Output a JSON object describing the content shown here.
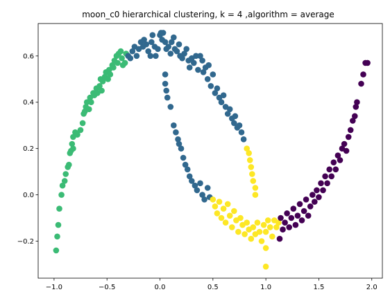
{
  "chart_data": {
    "type": "scatter",
    "title": "moon_c0 hierarchical clustering, k = 4 ,algorithm = average",
    "xlabel": "",
    "ylabel": "",
    "xlim": [
      -1.15,
      2.1
    ],
    "ylim": [
      -0.36,
      0.74
    ],
    "xticks": [
      -1.0,
      -0.5,
      0.0,
      0.5,
      1.0,
      1.5,
      2.0
    ],
    "xtick_labels": [
      "−1.0",
      "−0.5",
      "0.0",
      "0.5",
      "1.0",
      "1.5",
      "2.0"
    ],
    "yticks": [
      -0.2,
      0.0,
      0.2,
      0.4,
      0.6
    ],
    "ytick_labels": [
      "−0.2",
      "0.0",
      "0.2",
      "0.4",
      "0.6"
    ],
    "grid": false,
    "series": [
      {
        "color": "#3bbb75",
        "points": [
          [
            -0.98,
            -0.24
          ],
          [
            -0.97,
            -0.18
          ],
          [
            -0.96,
            -0.13
          ],
          [
            -0.95,
            -0.06
          ],
          [
            -0.93,
            0.0
          ],
          [
            -0.92,
            0.04
          ],
          [
            -0.9,
            0.06
          ],
          [
            -0.89,
            0.09
          ],
          [
            -0.87,
            0.12
          ],
          [
            -0.86,
            0.13
          ],
          [
            -0.85,
            0.18
          ],
          [
            -0.84,
            0.19
          ],
          [
            -0.83,
            0.22
          ],
          [
            -0.82,
            0.2
          ],
          [
            -0.82,
            0.25
          ],
          [
            -0.8,
            0.27
          ],
          [
            -0.78,
            0.26
          ],
          [
            -0.75,
            0.28
          ],
          [
            -0.73,
            0.31
          ],
          [
            -0.72,
            0.35
          ],
          [
            -0.71,
            0.36
          ],
          [
            -0.7,
            0.38
          ],
          [
            -0.69,
            0.4
          ],
          [
            -0.67,
            0.37
          ],
          [
            -0.66,
            0.42
          ],
          [
            -0.65,
            0.4
          ],
          [
            -0.63,
            0.44
          ],
          [
            -0.62,
            0.43
          ],
          [
            -0.6,
            0.46
          ],
          [
            -0.59,
            0.44
          ],
          [
            -0.57,
            0.47
          ],
          [
            -0.56,
            0.5
          ],
          [
            -0.55,
            0.45
          ],
          [
            -0.54,
            0.49
          ],
          [
            -0.52,
            0.51
          ],
          [
            -0.51,
            0.53
          ],
          [
            -0.49,
            0.5
          ],
          [
            -0.48,
            0.54
          ],
          [
            -0.47,
            0.52
          ],
          [
            -0.45,
            0.56
          ],
          [
            -0.44,
            0.55
          ],
          [
            -0.43,
            0.58
          ],
          [
            -0.41,
            0.6
          ],
          [
            -0.4,
            0.57
          ],
          [
            -0.39,
            0.61
          ],
          [
            -0.37,
            0.62
          ],
          [
            -0.36,
            0.59
          ],
          [
            -0.35,
            0.56
          ],
          [
            -0.33,
            0.57
          ],
          [
            -0.32,
            0.61
          ]
        ]
      },
      {
        "color": "#31688e",
        "points": [
          [
            -0.3,
            0.6
          ],
          [
            -0.28,
            0.59
          ],
          [
            -0.26,
            0.62
          ],
          [
            -0.24,
            0.64
          ],
          [
            -0.22,
            0.6
          ],
          [
            -0.2,
            0.63
          ],
          [
            -0.18,
            0.66
          ],
          [
            -0.16,
            0.64
          ],
          [
            -0.15,
            0.67
          ],
          [
            -0.13,
            0.65
          ],
          [
            -0.11,
            0.62
          ],
          [
            -0.09,
            0.6
          ],
          [
            -0.08,
            0.66
          ],
          [
            -0.07,
            0.69
          ],
          [
            -0.05,
            0.64
          ],
          [
            -0.04,
            0.6
          ],
          [
            -0.02,
            0.63
          ],
          [
            0.0,
            0.69
          ],
          [
            0.01,
            0.7
          ],
          [
            0.02,
            0.67
          ],
          [
            0.03,
            0.7
          ],
          [
            0.05,
            0.66
          ],
          [
            0.06,
            0.63
          ],
          [
            0.08,
            0.64
          ],
          [
            0.1,
            0.61
          ],
          [
            0.11,
            0.66
          ],
          [
            0.13,
            0.68
          ],
          [
            0.14,
            0.63
          ],
          [
            0.16,
            0.62
          ],
          [
            0.18,
            0.65
          ],
          [
            0.19,
            0.6
          ],
          [
            0.21,
            0.59
          ],
          [
            0.23,
            0.61
          ],
          [
            0.25,
            0.63
          ],
          [
            0.27,
            0.58
          ],
          [
            0.28,
            0.55
          ],
          [
            0.3,
            0.59
          ],
          [
            0.32,
            0.57
          ],
          [
            0.34,
            0.6
          ],
          [
            0.36,
            0.54
          ],
          [
            0.38,
            0.6
          ],
          [
            0.4,
            0.58
          ],
          [
            0.41,
            0.53
          ],
          [
            0.43,
            0.55
          ],
          [
            0.45,
            0.5
          ],
          [
            0.46,
            0.56
          ],
          [
            0.48,
            0.47
          ],
          [
            0.5,
            0.52
          ],
          [
            0.52,
            0.44
          ],
          [
            0.54,
            0.46
          ],
          [
            0.56,
            0.42
          ],
          [
            0.58,
            0.4
          ],
          [
            0.6,
            0.43
          ],
          [
            0.62,
            0.38
          ],
          [
            0.64,
            0.35
          ],
          [
            0.66,
            0.37
          ],
          [
            0.68,
            0.33
          ],
          [
            0.7,
            0.31
          ],
          [
            0.71,
            0.34
          ],
          [
            0.73,
            0.29
          ],
          [
            0.75,
            0.3
          ],
          [
            0.77,
            0.27
          ],
          [
            0.79,
            0.24
          ],
          [
            0.05,
            0.52
          ],
          [
            0.05,
            0.48
          ],
          [
            0.06,
            0.45
          ],
          [
            0.07,
            0.42
          ],
          [
            0.1,
            0.38
          ],
          [
            0.13,
            0.3
          ],
          [
            0.15,
            0.27
          ],
          [
            0.17,
            0.24
          ],
          [
            0.18,
            0.22
          ],
          [
            0.2,
            0.2
          ],
          [
            0.22,
            0.16
          ],
          [
            0.24,
            0.13
          ],
          [
            0.26,
            0.11
          ],
          [
            0.28,
            0.08
          ],
          [
            0.3,
            0.06
          ],
          [
            0.33,
            0.04
          ],
          [
            0.35,
            0.02
          ],
          [
            0.38,
            0.05
          ],
          [
            0.4,
            0.0
          ],
          [
            0.42,
            -0.02
          ],
          [
            0.45,
            0.03
          ],
          [
            0.47,
            -0.01
          ]
        ]
      },
      {
        "color": "#fde725",
        "points": [
          [
            0.82,
            0.2
          ],
          [
            0.84,
            0.18
          ],
          [
            0.85,
            0.15
          ],
          [
            0.86,
            0.12
          ],
          [
            0.87,
            0.09
          ],
          [
            0.88,
            0.06
          ],
          [
            0.9,
            0.03
          ],
          [
            0.9,
            0.0
          ],
          [
            0.5,
            -0.02
          ],
          [
            0.52,
            -0.05
          ],
          [
            0.54,
            -0.08
          ],
          [
            0.56,
            -0.03
          ],
          [
            0.58,
            -0.1
          ],
          [
            0.6,
            -0.06
          ],
          [
            0.62,
            -0.12
          ],
          [
            0.64,
            -0.04
          ],
          [
            0.66,
            -0.09
          ],
          [
            0.68,
            -0.14
          ],
          [
            0.7,
            -0.07
          ],
          [
            0.72,
            -0.11
          ],
          [
            0.74,
            -0.16
          ],
          [
            0.76,
            -0.1
          ],
          [
            0.78,
            -0.13
          ],
          [
            0.8,
            -0.17
          ],
          [
            0.82,
            -0.12
          ],
          [
            0.84,
            -0.15
          ],
          [
            0.86,
            -0.19
          ],
          [
            0.88,
            -0.14
          ],
          [
            0.9,
            -0.17
          ],
          [
            0.92,
            -0.12
          ],
          [
            0.94,
            -0.16
          ],
          [
            0.96,
            -0.2
          ],
          [
            0.98,
            -0.13
          ],
          [
            1.0,
            -0.16
          ],
          [
            1.0,
            -0.23
          ],
          [
            1.0,
            -0.31
          ],
          [
            1.02,
            -0.11
          ],
          [
            1.04,
            -0.14
          ],
          [
            1.06,
            -0.18
          ],
          [
            1.08,
            -0.11
          ],
          [
            1.1,
            -0.14
          ],
          [
            1.12,
            -0.12
          ]
        ]
      },
      {
        "color": "#440154",
        "points": [
          [
            1.13,
            -0.19
          ],
          [
            1.14,
            -0.1
          ],
          [
            1.16,
            -0.15
          ],
          [
            1.18,
            -0.12
          ],
          [
            1.2,
            -0.08
          ],
          [
            1.22,
            -0.14
          ],
          [
            1.24,
            -0.1
          ],
          [
            1.26,
            -0.06
          ],
          [
            1.28,
            -0.13
          ],
          [
            1.3,
            -0.09
          ],
          [
            1.32,
            -0.04
          ],
          [
            1.34,
            -0.11
          ],
          [
            1.36,
            -0.07
          ],
          [
            1.38,
            -0.02
          ],
          [
            1.4,
            -0.09
          ],
          [
            1.42,
            -0.05
          ],
          [
            1.44,
            0.0
          ],
          [
            1.46,
            -0.03
          ],
          [
            1.48,
            0.02
          ],
          [
            1.5,
            -0.01
          ],
          [
            1.52,
            0.05
          ],
          [
            1.54,
            0.02
          ],
          [
            1.56,
            0.08
          ],
          [
            1.58,
            0.05
          ],
          [
            1.6,
            0.11
          ],
          [
            1.62,
            0.08
          ],
          [
            1.64,
            0.14
          ],
          [
            1.66,
            0.11
          ],
          [
            1.68,
            0.17
          ],
          [
            1.7,
            0.15
          ],
          [
            1.72,
            0.2
          ],
          [
            1.74,
            0.22
          ],
          [
            1.76,
            0.19
          ],
          [
            1.78,
            0.25
          ],
          [
            1.8,
            0.28
          ],
          [
            1.82,
            0.32
          ],
          [
            1.84,
            0.34
          ],
          [
            1.85,
            0.38
          ],
          [
            1.86,
            0.4
          ],
          [
            1.9,
            0.48
          ],
          [
            1.92,
            0.52
          ],
          [
            1.94,
            0.57
          ],
          [
            1.96,
            0.57
          ]
        ]
      }
    ]
  }
}
